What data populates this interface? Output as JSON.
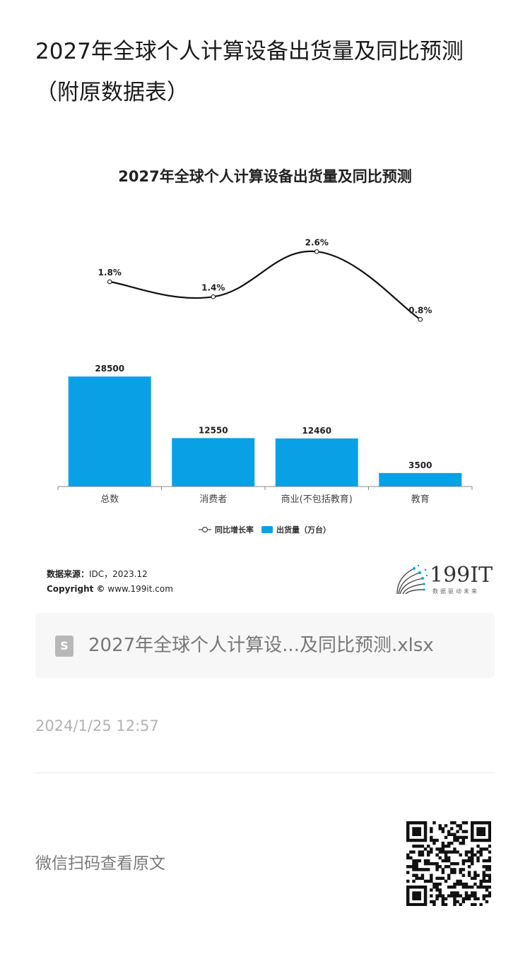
{
  "article": {
    "title": "2027年全球个人计算设备出货量及同比预测（附原数据表）",
    "timestamp": "2024/1/25 12:57",
    "scan_prompt": "微信扫码查看原文"
  },
  "attachment": {
    "file_name": "2027年全球个人计算设...及同比预测.xlsx",
    "icon": "spreadsheet-file-icon",
    "icon_letter": "S"
  },
  "source": {
    "label": "数据来源：",
    "text": "IDC，2023.12",
    "copyright_label": "Copyright ©",
    "copyright_text": "www.199it.com"
  },
  "logo": {
    "text": "199IT",
    "tagline": "数据驱动未来"
  },
  "colors": {
    "bar": "#0aa0e6",
    "line": "#111111",
    "axis": "#888888"
  },
  "chart_data": {
    "type": "bar",
    "title": "2027年全球个人计算设备出货量及同比预测",
    "categories": [
      "总数",
      "消费者",
      "商业(不包括教育)",
      "教育"
    ],
    "series": [
      {
        "name": "出货量（万台）",
        "type": "bar",
        "values": [
          28500,
          12550,
          12460,
          3500
        ],
        "labels": [
          "28500",
          "12550",
          "12460",
          "3500"
        ]
      },
      {
        "name": "同比增长率",
        "type": "line",
        "values": [
          1.8,
          1.4,
          2.6,
          0.8
        ],
        "labels": [
          "1.8%",
          "1.4%",
          "2.6%",
          "0.8%"
        ]
      }
    ],
    "bar_ylim": [
      0,
      30000
    ],
    "line_ylim": [
      0,
      3
    ],
    "legend_position": "bottom",
    "grid": false
  }
}
